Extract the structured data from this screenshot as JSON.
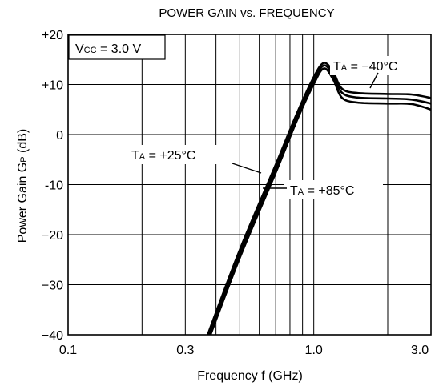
{
  "chart_data": {
    "type": "line",
    "title": "POWER GAIN vs. FREQUENCY",
    "xlabel": "Frequency  f  (GHz)",
    "ylabel_main": "Power Gain  G",
    "ylabel_sub": "P",
    "ylabel_unit": " (dB)",
    "x_scale": "log",
    "xlim": [
      0.1,
      3.0
    ],
    "ylim": [
      -40,
      20
    ],
    "grid": true,
    "x_ticks": [
      {
        "value": 0.1,
        "label": "0.1"
      },
      {
        "value": 0.3,
        "label": "0.3"
      },
      {
        "value": 1.0,
        "label": "1.0"
      },
      {
        "value": 3.0,
        "label": "3.0"
      }
    ],
    "x_gridlines": [
      0.2,
      0.3,
      0.4,
      0.5,
      0.6,
      0.7,
      0.8,
      0.9,
      1.0,
      2.0
    ],
    "y_ticks": [
      {
        "value": 20,
        "label": "+20"
      },
      {
        "value": 10,
        "label": "+10"
      },
      {
        "value": 0,
        "label": "0"
      },
      {
        "value": -10,
        "label": "-10"
      },
      {
        "value": -20,
        "label": "−20"
      },
      {
        "value": -30,
        "label": "−30"
      },
      {
        "value": -40,
        "label": "−40"
      }
    ],
    "condition_box": {
      "main": "V",
      "sub": "CC",
      "rest": " = 3.0 V"
    },
    "series": [
      {
        "name": "TA = −40°C",
        "label_main": "T",
        "label_sub": "A",
        "label_rest": " = −40°C",
        "points": [
          [
            0.37,
            -40
          ],
          [
            0.5,
            -23
          ],
          [
            0.7,
            -6
          ],
          [
            0.85,
            4
          ],
          [
            1.0,
            11.5
          ],
          [
            1.1,
            14.3
          ],
          [
            1.2,
            12.5
          ],
          [
            1.3,
            9.2
          ],
          [
            1.5,
            8.3
          ],
          [
            2.0,
            8.1
          ],
          [
            2.5,
            8.0
          ],
          [
            3.0,
            7.3
          ]
        ]
      },
      {
        "name": "TA = +25°C",
        "label_main": "T",
        "label_sub": "A",
        "label_rest": " = +25°C",
        "points": [
          [
            0.375,
            -40
          ],
          [
            0.5,
            -23.8
          ],
          [
            0.7,
            -6.8
          ],
          [
            0.85,
            3.3
          ],
          [
            1.0,
            10.8
          ],
          [
            1.1,
            13.8
          ],
          [
            1.2,
            11.8
          ],
          [
            1.3,
            8.4
          ],
          [
            1.5,
            7.4
          ],
          [
            2.0,
            7.2
          ],
          [
            2.5,
            7.0
          ],
          [
            3.0,
            6.2
          ]
        ]
      },
      {
        "name": "TA = +85°C",
        "label_main": "T",
        "label_sub": "A",
        "label_rest": " = +85°C",
        "points": [
          [
            0.38,
            -40
          ],
          [
            0.5,
            -24.6
          ],
          [
            0.7,
            -7.6
          ],
          [
            0.85,
            2.6
          ],
          [
            1.0,
            10.1
          ],
          [
            1.1,
            13.2
          ],
          [
            1.2,
            11
          ],
          [
            1.3,
            7.4
          ],
          [
            1.5,
            6.4
          ],
          [
            2.0,
            6.2
          ],
          [
            2.5,
            6.1
          ],
          [
            3.0,
            5.0
          ]
        ]
      }
    ]
  }
}
